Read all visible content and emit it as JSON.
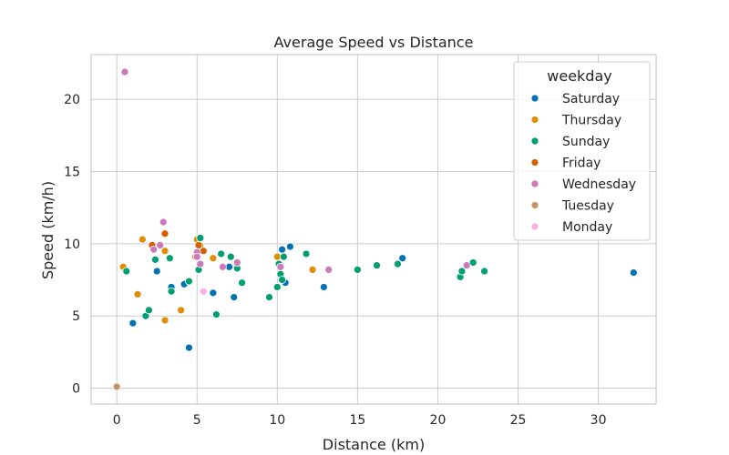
{
  "chart_data": {
    "type": "scatter",
    "title": "Average Speed vs Distance",
    "xlabel": "Distance (km)",
    "ylabel": "Speed (km/h)",
    "xlim": [
      -1.6,
      33.6
    ],
    "ylim": [
      -1.1,
      23.1
    ],
    "xticks": [
      0,
      5,
      10,
      15,
      20,
      25,
      30
    ],
    "yticks": [
      0,
      5,
      10,
      15,
      20
    ],
    "grid": true,
    "legend": {
      "title": "weekday",
      "placement": "top-right"
    },
    "series": [
      {
        "name": "Saturday",
        "color": "#0173b2",
        "points": [
          {
            "x": 1.0,
            "y": 4.5
          },
          {
            "x": 2.5,
            "y": 8.1
          },
          {
            "x": 3.4,
            "y": 7.0
          },
          {
            "x": 4.2,
            "y": 7.2
          },
          {
            "x": 4.5,
            "y": 2.8
          },
          {
            "x": 6.0,
            "y": 6.6
          },
          {
            "x": 7.0,
            "y": 8.4
          },
          {
            "x": 7.3,
            "y": 6.3
          },
          {
            "x": 10.2,
            "y": 8.5
          },
          {
            "x": 10.3,
            "y": 9.6
          },
          {
            "x": 10.5,
            "y": 7.3
          },
          {
            "x": 10.8,
            "y": 9.8
          },
          {
            "x": 12.9,
            "y": 7.0
          },
          {
            "x": 17.8,
            "y": 9.0
          },
          {
            "x": 32.2,
            "y": 8.0
          }
        ]
      },
      {
        "name": "Thursday",
        "color": "#de8f05",
        "points": [
          {
            "x": 0.4,
            "y": 8.4
          },
          {
            "x": 1.3,
            "y": 6.5
          },
          {
            "x": 1.6,
            "y": 10.3
          },
          {
            "x": 3.0,
            "y": 9.5
          },
          {
            "x": 3.0,
            "y": 4.7
          },
          {
            "x": 4.0,
            "y": 5.4
          },
          {
            "x": 4.9,
            "y": 9.1
          },
          {
            "x": 5.0,
            "y": 10.3
          },
          {
            "x": 5.2,
            "y": 9.9
          },
          {
            "x": 6.0,
            "y": 9.0
          },
          {
            "x": 10.0,
            "y": 9.1
          },
          {
            "x": 12.2,
            "y": 8.2
          }
        ]
      },
      {
        "name": "Sunday",
        "color": "#029e73",
        "points": [
          {
            "x": 0.6,
            "y": 8.1
          },
          {
            "x": 1.8,
            "y": 5.0
          },
          {
            "x": 2.0,
            "y": 5.4
          },
          {
            "x": 2.4,
            "y": 8.9
          },
          {
            "x": 3.3,
            "y": 9.0
          },
          {
            "x": 3.4,
            "y": 6.7
          },
          {
            "x": 4.5,
            "y": 7.4
          },
          {
            "x": 5.1,
            "y": 8.2
          },
          {
            "x": 5.2,
            "y": 10.4
          },
          {
            "x": 6.2,
            "y": 5.1
          },
          {
            "x": 6.5,
            "y": 9.3
          },
          {
            "x": 7.1,
            "y": 9.1
          },
          {
            "x": 7.5,
            "y": 8.3
          },
          {
            "x": 7.8,
            "y": 7.3
          },
          {
            "x": 9.5,
            "y": 6.3
          },
          {
            "x": 10.0,
            "y": 7.0
          },
          {
            "x": 10.1,
            "y": 8.6
          },
          {
            "x": 10.2,
            "y": 7.9
          },
          {
            "x": 10.3,
            "y": 7.5
          },
          {
            "x": 10.4,
            "y": 9.1
          },
          {
            "x": 11.8,
            "y": 9.3
          },
          {
            "x": 15.0,
            "y": 8.2
          },
          {
            "x": 16.2,
            "y": 8.5
          },
          {
            "x": 17.5,
            "y": 8.6
          },
          {
            "x": 21.4,
            "y": 7.7
          },
          {
            "x": 21.5,
            "y": 8.1
          },
          {
            "x": 22.2,
            "y": 8.7
          },
          {
            "x": 22.9,
            "y": 8.1
          }
        ]
      },
      {
        "name": "Friday",
        "color": "#d55e00",
        "points": [
          {
            "x": 2.2,
            "y": 9.9
          },
          {
            "x": 3.0,
            "y": 10.7
          },
          {
            "x": 5.1,
            "y": 9.9
          },
          {
            "x": 5.4,
            "y": 9.5
          }
        ]
      },
      {
        "name": "Wednesday",
        "color": "#cc78bc",
        "points": [
          {
            "x": 0.5,
            "y": 21.9
          },
          {
            "x": 2.3,
            "y": 9.6
          },
          {
            "x": 2.7,
            "y": 9.9
          },
          {
            "x": 2.9,
            "y": 11.5
          },
          {
            "x": 5.0,
            "y": 9.4
          },
          {
            "x": 5.0,
            "y": 9.1
          },
          {
            "x": 5.2,
            "y": 8.6
          },
          {
            "x": 6.6,
            "y": 8.4
          },
          {
            "x": 7.5,
            "y": 8.7
          },
          {
            "x": 10.2,
            "y": 8.4
          },
          {
            "x": 13.2,
            "y": 8.2
          },
          {
            "x": 21.8,
            "y": 8.5
          }
        ]
      },
      {
        "name": "Tuesday",
        "color": "#ca9161",
        "points": [
          {
            "x": 0.0,
            "y": 0.1
          }
        ]
      },
      {
        "name": "Monday",
        "color": "#fbafe4",
        "points": [
          {
            "x": 5.4,
            "y": 6.7
          }
        ]
      }
    ]
  }
}
